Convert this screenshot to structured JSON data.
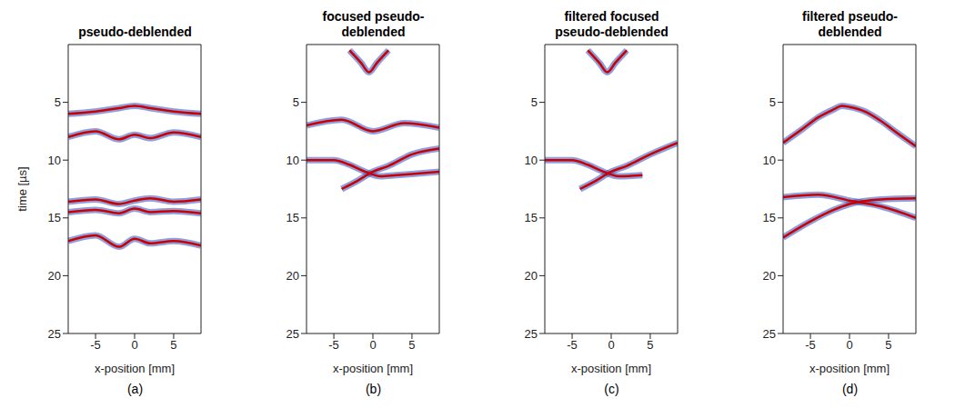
{
  "chart_data": [
    {
      "type": "line",
      "title": "pseudo-deblended",
      "caption": "(a)",
      "xlabel": "x-position [mm]",
      "ylabel": "time [µs]",
      "xlim": [
        -8.5,
        8.5
      ],
      "xticks": [
        -5,
        0,
        5
      ],
      "ylim": [
        0,
        25
      ],
      "yticks": [
        5,
        10,
        15,
        20,
        25
      ],
      "color": "#cc0000",
      "series": [
        {
          "x": [
            -8.5,
            -5,
            -2,
            0,
            2,
            5,
            8.5
          ],
          "values": [
            6,
            5.8,
            5.5,
            5.3,
            5.5,
            5.8,
            6
          ]
        },
        {
          "x": [
            -8.5,
            -5,
            -2,
            0,
            2,
            5,
            8.5
          ],
          "values": [
            8,
            7.5,
            8.2,
            7.8,
            8.1,
            7.6,
            8
          ]
        },
        {
          "x": [
            -8.5,
            -5,
            -2,
            0,
            2,
            5,
            8.5
          ],
          "values": [
            13.6,
            13.4,
            13.8,
            13.5,
            13.3,
            13.6,
            13.4
          ]
        },
        {
          "x": [
            -8.5,
            -5,
            -2,
            0,
            2,
            5,
            8.5
          ],
          "values": [
            14.5,
            14.3,
            14.6,
            14.2,
            14.5,
            14.4,
            14.6
          ]
        },
        {
          "x": [
            -8.5,
            -5,
            -2,
            0,
            2,
            5,
            8.5
          ],
          "values": [
            17,
            16.5,
            17.5,
            16.8,
            17.2,
            17,
            17.4
          ]
        }
      ]
    },
    {
      "type": "line",
      "title": "focused pseudo-deblended",
      "caption": "(b)",
      "xlabel": "x-position [mm]",
      "xlim": [
        -8.5,
        8.5
      ],
      "xticks": [
        -5,
        0,
        5
      ],
      "ylim": [
        0,
        25
      ],
      "yticks": [
        5,
        10,
        15,
        20,
        25
      ],
      "color": "#cc0000",
      "series": [
        {
          "x": [
            -3,
            -1.5,
            -0.5,
            0.5,
            2
          ],
          "values": [
            0.5,
            1.6,
            2.4,
            1.6,
            0.5
          ]
        },
        {
          "x": [
            -8.5,
            -4,
            0,
            4,
            8.5
          ],
          "values": [
            7,
            6.5,
            7.5,
            6.8,
            7.2
          ]
        },
        {
          "x": [
            -8.5,
            -5,
            -3,
            -1,
            1,
            3,
            5,
            8.5
          ],
          "values": [
            10,
            10,
            10.4,
            11,
            11.4,
            11.3,
            11.2,
            11
          ]
        },
        {
          "x": [
            -4,
            -2,
            0,
            2,
            5,
            8.5
          ],
          "values": [
            12.5,
            11.8,
            11,
            10.5,
            9.5,
            9
          ]
        }
      ]
    },
    {
      "type": "line",
      "title": "filtered focused pseudo-deblended",
      "caption": "(c)",
      "xlabel": "x-position [mm]",
      "xlim": [
        -8.5,
        8.5
      ],
      "xticks": [
        -5,
        0,
        5
      ],
      "ylim": [
        0,
        25
      ],
      "yticks": [
        5,
        10,
        15,
        20,
        25
      ],
      "color": "#cc0000",
      "series": [
        {
          "x": [
            -3,
            -1.5,
            -0.5,
            0.5,
            2
          ],
          "values": [
            0.5,
            1.6,
            2.4,
            1.6,
            0.5
          ]
        },
        {
          "x": [
            -8.5,
            -5,
            -3,
            -1,
            1,
            4
          ],
          "values": [
            10,
            10,
            10.4,
            11,
            11.4,
            11.3
          ]
        },
        {
          "x": [
            -4,
            -2,
            0,
            2,
            5,
            8.5
          ],
          "values": [
            12.5,
            11.8,
            11,
            10.5,
            9.5,
            8.5
          ]
        }
      ]
    },
    {
      "type": "line",
      "title": "filtered pseudo-deblended",
      "caption": "(d)",
      "xlabel": "x-position [mm]",
      "xlim": [
        -8.5,
        8.5
      ],
      "xticks": [
        -5,
        0,
        5
      ],
      "ylim": [
        0,
        25
      ],
      "yticks": [
        5,
        10,
        15,
        20,
        25
      ],
      "color": "#cc0000",
      "series": [
        {
          "x": [
            -8.5,
            -6,
            -4,
            -2,
            -1,
            0,
            2,
            4,
            6,
            8.5
          ],
          "values": [
            8.5,
            7.3,
            6.3,
            5.6,
            5.3,
            5.4,
            5.8,
            6.6,
            7.6,
            8.8
          ]
        },
        {
          "x": [
            -8.5,
            -4,
            0,
            4,
            8.5
          ],
          "values": [
            13.2,
            13,
            13.5,
            14,
            15
          ]
        },
        {
          "x": [
            -8.5,
            -5,
            -2,
            0,
            4,
            8.5
          ],
          "values": [
            16.7,
            15.3,
            14.3,
            13.8,
            13.4,
            13.3
          ]
        }
      ]
    }
  ]
}
